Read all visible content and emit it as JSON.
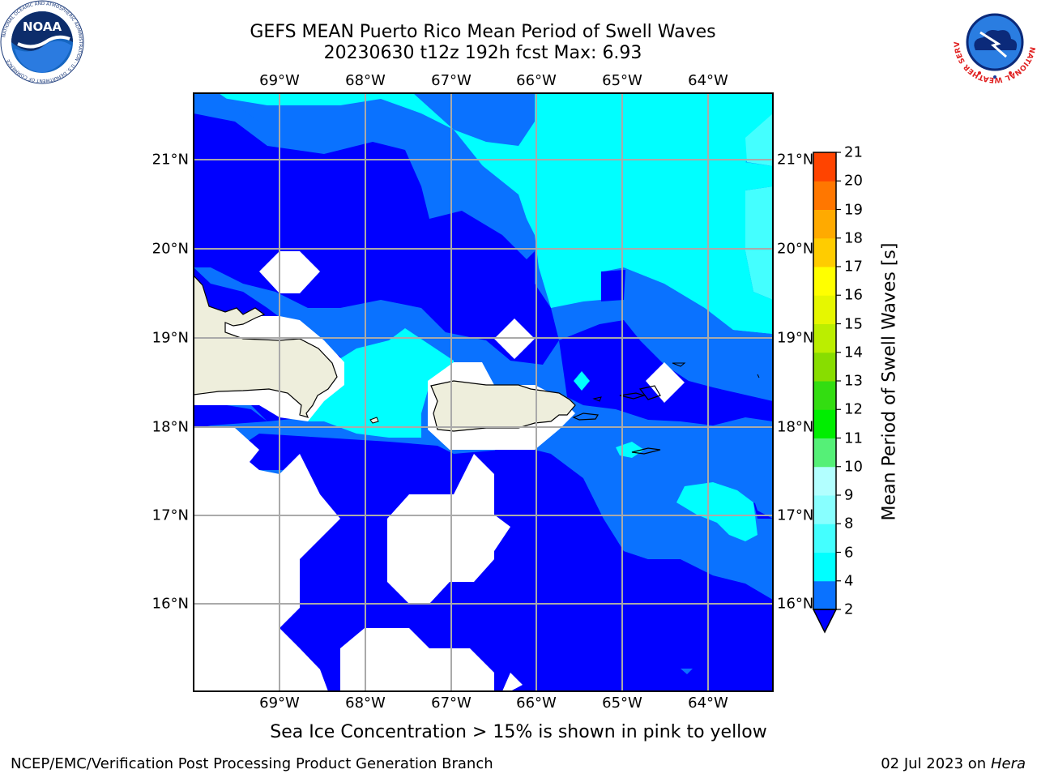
{
  "header": {
    "title_line1": "GEFS MEAN Puerto Rico Mean Period of Swell Waves",
    "title_line2": "20230630 t12z 192h fcst   Max: 6.93"
  },
  "map": {
    "lon_ticks": [
      "69°W",
      "68°W",
      "67°W",
      "66°W",
      "65°W",
      "64°W"
    ],
    "lat_ticks": [
      "21°N",
      "20°N",
      "19°N",
      "18°N",
      "17°N",
      "16°N"
    ],
    "land_color": "#eeeedc",
    "ocean_min_color": "#0000ff"
  },
  "colorbar": {
    "title": "Mean Period of Swell Waves [s]",
    "labels": [
      "2",
      "4",
      "6",
      "8",
      "9",
      "10",
      "11",
      "12",
      "13",
      "14",
      "15",
      "16",
      "17",
      "18",
      "19",
      "20",
      "21"
    ],
    "colors": [
      "#0a72ff",
      "#00ffff",
      "#44ffff",
      "#88ffff",
      "#b2ffff",
      "#55f077",
      "#00ee00",
      "#33dd11",
      "#88dd00",
      "#bbee00",
      "#e6f700",
      "#ffff00",
      "#ffcc00",
      "#ffaa00",
      "#ff7700",
      "#ff4400",
      "#ff0000"
    ],
    "under_color": "#0000ff"
  },
  "notes": {
    "ice": "Sea Ice Concentration > 15% is shown in pink to yellow"
  },
  "footer": {
    "left": "NCEP/EMC/Verification Post Processing Product Generation Branch",
    "date": "02 Jul 2023 on ",
    "machine": "Hera"
  },
  "logos": {
    "noaa_text": "NOAA",
    "noaa_ring_text": "NATIONAL OCEANIC AND ATMOSPHERIC ADMINISTRATION · U.S. DEPARTMENT OF COMMERCE",
    "nws_ring_text": "NATIONAL WEATHER SERVICE"
  }
}
